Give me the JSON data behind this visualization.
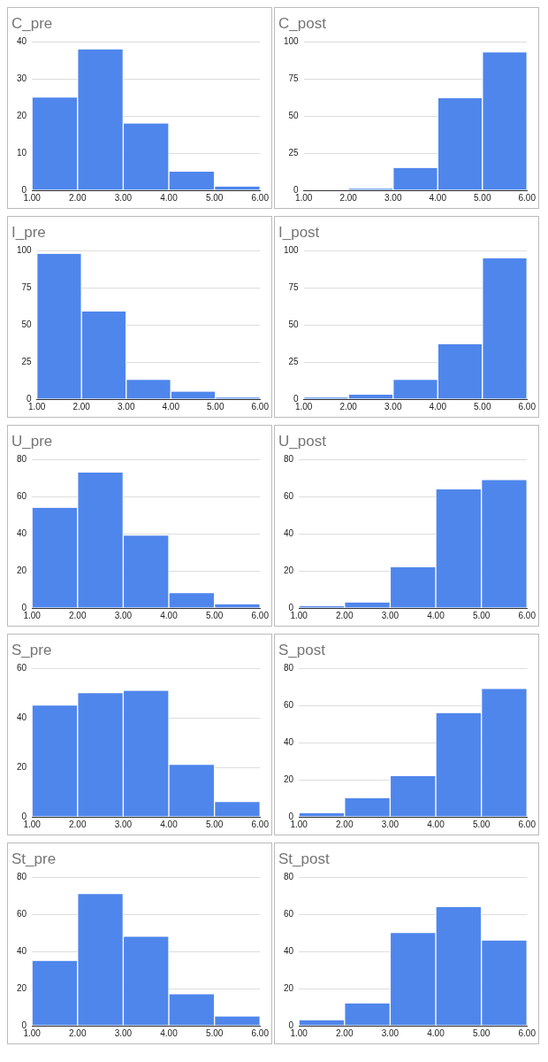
{
  "chart_data": [
    {
      "type": "histogram",
      "title": "C_pre",
      "bins": [
        1,
        2,
        3,
        4,
        5,
        6
      ],
      "values": [
        25,
        38,
        18,
        5,
        1
      ],
      "color": "#4f86ec",
      "xlim": [
        1,
        6
      ],
      "xticks": [
        {
          "value": 1,
          "label": "1.00"
        },
        {
          "value": 2,
          "label": "2.00"
        },
        {
          "value": 3,
          "label": "3.00"
        },
        {
          "value": 4,
          "label": "4.00"
        },
        {
          "value": 5,
          "label": "5.00"
        },
        {
          "value": 6,
          "label": "6.00"
        }
      ],
      "ylim": [
        0,
        40
      ],
      "yticks": [
        0,
        10,
        20,
        30,
        40
      ],
      "grid": "y"
    },
    {
      "type": "histogram",
      "title": "C_post",
      "bins": [
        1,
        2,
        3,
        4,
        5,
        6
      ],
      "values": [
        0,
        1,
        15,
        62,
        93
      ],
      "color": "#4f86ec",
      "xlim": [
        1,
        6
      ],
      "xticks": [
        {
          "value": 1,
          "label": "1.00"
        },
        {
          "value": 2,
          "label": "2.00"
        },
        {
          "value": 3,
          "label": "3.00"
        },
        {
          "value": 4,
          "label": "4.00"
        },
        {
          "value": 5,
          "label": "5.00"
        },
        {
          "value": 6,
          "label": "6.00"
        }
      ],
      "ylim": [
        0,
        100
      ],
      "yticks": [
        0,
        25,
        50,
        75,
        100
      ],
      "grid": "y"
    },
    {
      "type": "histogram",
      "title": "I_pre",
      "bins": [
        1,
        2,
        3,
        4,
        5,
        6
      ],
      "values": [
        98,
        59,
        13,
        5,
        1
      ],
      "color": "#4f86ec",
      "xlim": [
        1,
        6
      ],
      "xticks": [
        {
          "value": 1,
          "label": "1.00"
        },
        {
          "value": 2,
          "label": "2.00"
        },
        {
          "value": 3,
          "label": "3.00"
        },
        {
          "value": 4,
          "label": "4.00"
        },
        {
          "value": 5,
          "label": "5.00"
        },
        {
          "value": 6,
          "label": "6.00"
        }
      ],
      "ylim": [
        0,
        100
      ],
      "yticks": [
        0,
        25,
        50,
        75,
        100
      ],
      "grid": "y"
    },
    {
      "type": "histogram",
      "title": "I_post",
      "bins": [
        1,
        2,
        3,
        4,
        5,
        6
      ],
      "values": [
        1,
        3,
        13,
        37,
        95
      ],
      "color": "#4f86ec",
      "xlim": [
        1,
        6
      ],
      "xticks": [
        {
          "value": 1,
          "label": "1.00"
        },
        {
          "value": 2,
          "label": "2.00"
        },
        {
          "value": 3,
          "label": "3.00"
        },
        {
          "value": 4,
          "label": "4.00"
        },
        {
          "value": 5,
          "label": "5.00"
        },
        {
          "value": 6,
          "label": "6.00"
        }
      ],
      "ylim": [
        0,
        100
      ],
      "yticks": [
        0,
        25,
        50,
        75,
        100
      ],
      "grid": "y"
    },
    {
      "type": "histogram",
      "title": "U_pre",
      "bins": [
        1,
        2,
        3,
        4,
        5,
        6
      ],
      "values": [
        54,
        73,
        39,
        8,
        2
      ],
      "color": "#4f86ec",
      "xlim": [
        1,
        6
      ],
      "xticks": [
        {
          "value": 1,
          "label": "1.00"
        },
        {
          "value": 2,
          "label": "2.00"
        },
        {
          "value": 3,
          "label": "3.00"
        },
        {
          "value": 4,
          "label": "4.00"
        },
        {
          "value": 5,
          "label": "5.00"
        },
        {
          "value": 6,
          "label": "6.00"
        }
      ],
      "ylim": [
        0,
        80
      ],
      "yticks": [
        0,
        20,
        40,
        60,
        80
      ],
      "grid": "y"
    },
    {
      "type": "histogram",
      "title": "U_post",
      "bins": [
        1,
        2,
        3,
        4,
        5,
        6
      ],
      "values": [
        1,
        3,
        22,
        64,
        69
      ],
      "color": "#4f86ec",
      "xlim": [
        1,
        6
      ],
      "xticks": [
        {
          "value": 1,
          "label": "1.00"
        },
        {
          "value": 2,
          "label": "2.00"
        },
        {
          "value": 3,
          "label": "3.00"
        },
        {
          "value": 4,
          "label": "4.00"
        },
        {
          "value": 5,
          "label": "5.00"
        },
        {
          "value": 6,
          "label": "6.00"
        }
      ],
      "ylim": [
        0,
        80
      ],
      "yticks": [
        0,
        20,
        40,
        60,
        80
      ],
      "grid": "y"
    },
    {
      "type": "histogram",
      "title": "S_pre",
      "bins": [
        1,
        2,
        3,
        4,
        5,
        6
      ],
      "values": [
        45,
        50,
        51,
        21,
        6
      ],
      "color": "#4f86ec",
      "xlim": [
        1,
        6
      ],
      "xticks": [
        {
          "value": 1,
          "label": "1.00"
        },
        {
          "value": 2,
          "label": "2.00"
        },
        {
          "value": 3,
          "label": "3.00"
        },
        {
          "value": 4,
          "label": "4.00"
        },
        {
          "value": 5,
          "label": "5.00"
        },
        {
          "value": 6,
          "label": "6.00"
        }
      ],
      "ylim": [
        0,
        60
      ],
      "yticks": [
        0,
        20,
        40,
        60
      ],
      "grid": "y"
    },
    {
      "type": "histogram",
      "title": "S_post",
      "bins": [
        1,
        2,
        3,
        4,
        5,
        6
      ],
      "values": [
        2,
        10,
        22,
        56,
        69
      ],
      "color": "#4f86ec",
      "xlim": [
        1,
        6
      ],
      "xticks": [
        {
          "value": 1,
          "label": "1.00"
        },
        {
          "value": 2,
          "label": "2.00"
        },
        {
          "value": 3,
          "label": "3.00"
        },
        {
          "value": 4,
          "label": "4.00"
        },
        {
          "value": 5,
          "label": "5.00"
        },
        {
          "value": 6,
          "label": "6.00"
        }
      ],
      "ylim": [
        0,
        80
      ],
      "yticks": [
        0,
        20,
        40,
        60,
        80
      ],
      "grid": "y"
    },
    {
      "type": "histogram",
      "title": "St_pre",
      "bins": [
        1,
        2,
        3,
        4,
        5,
        6
      ],
      "values": [
        35,
        71,
        48,
        17,
        5
      ],
      "color": "#4f86ec",
      "xlim": [
        1,
        6
      ],
      "xticks": [
        {
          "value": 1,
          "label": "1.00"
        },
        {
          "value": 2,
          "label": "2.00"
        },
        {
          "value": 3,
          "label": "3.00"
        },
        {
          "value": 4,
          "label": "4.00"
        },
        {
          "value": 5,
          "label": "5.00"
        },
        {
          "value": 6,
          "label": "6.00"
        }
      ],
      "ylim": [
        0,
        80
      ],
      "yticks": [
        0,
        20,
        40,
        60,
        80
      ],
      "grid": "y"
    },
    {
      "type": "histogram",
      "title": "St_post",
      "bins": [
        1,
        2,
        3,
        4,
        5,
        6
      ],
      "values": [
        3,
        12,
        50,
        64,
        46
      ],
      "color": "#4f86ec",
      "xlim": [
        1,
        6
      ],
      "xticks": [
        {
          "value": 1,
          "label": "1.00"
        },
        {
          "value": 2,
          "label": "2.00"
        },
        {
          "value": 3,
          "label": "3.00"
        },
        {
          "value": 4,
          "label": "4.00"
        },
        {
          "value": 5,
          "label": "5.00"
        },
        {
          "value": 6,
          "label": "6.00"
        }
      ],
      "ylim": [
        0,
        80
      ],
      "yticks": [
        0,
        20,
        40,
        60,
        80
      ],
      "grid": "y"
    }
  ]
}
